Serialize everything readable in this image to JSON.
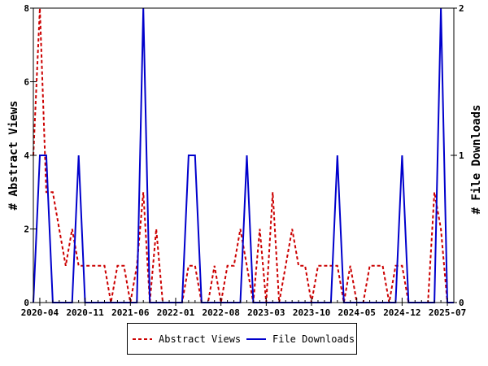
{
  "chart_data": {
    "type": "line",
    "x": [
      "2020-03",
      "2020-04",
      "2020-05",
      "2020-06",
      "2020-07",
      "2020-08",
      "2020-09",
      "2020-10",
      "2020-11",
      "2020-12",
      "2021-01",
      "2021-02",
      "2021-03",
      "2021-04",
      "2021-05",
      "2021-06",
      "2021-07",
      "2021-08",
      "2021-09",
      "2021-10",
      "2021-11",
      "2021-12",
      "2022-01",
      "2022-02",
      "2022-03",
      "2022-04",
      "2022-05",
      "2022-06",
      "2022-07",
      "2022-08",
      "2022-09",
      "2022-10",
      "2022-11",
      "2022-12",
      "2023-01",
      "2023-02",
      "2023-03",
      "2023-04",
      "2023-05",
      "2023-06",
      "2023-07",
      "2023-08",
      "2023-09",
      "2023-10",
      "2023-11",
      "2023-12",
      "2024-01",
      "2024-02",
      "2024-03",
      "2024-04",
      "2024-05",
      "2024-06",
      "2024-07",
      "2024-08",
      "2024-09",
      "2024-10",
      "2024-11",
      "2024-12",
      "2025-01",
      "2025-02",
      "2025-03",
      "2025-04",
      "2025-05",
      "2025-06",
      "2025-07",
      "2025-08"
    ],
    "x_tick_labels": [
      "2020-04",
      "2020-11",
      "2021-06",
      "2022-01",
      "2022-08",
      "2023-03",
      "2023-10",
      "2024-05",
      "2024-12",
      "2025-07"
    ],
    "series": [
      {
        "name": "Abstract Views",
        "axis": "left",
        "color": "#cc0000",
        "dash": true,
        "values": [
          4,
          8,
          3,
          3,
          2,
          1,
          2,
          1,
          1,
          1,
          1,
          1,
          0,
          1,
          1,
          0,
          1,
          3,
          0,
          2,
          0,
          0,
          0,
          0,
          1,
          1,
          0,
          0,
          1,
          0,
          1,
          1,
          2,
          1,
          0,
          2,
          0,
          3,
          0,
          1,
          2,
          1,
          1,
          0,
          1,
          1,
          1,
          1,
          0,
          1,
          0,
          0,
          1,
          1,
          1,
          0,
          1,
          1,
          0,
          0,
          0,
          0,
          3,
          2,
          0,
          0
        ]
      },
      {
        "name": "File Downloads",
        "axis": "right",
        "color": "#0000cc",
        "dash": false,
        "values": [
          0,
          1,
          1,
          0,
          0,
          0,
          0,
          1,
          0,
          0,
          0,
          0,
          0,
          0,
          0,
          0,
          0,
          2,
          0,
          0,
          0,
          0,
          0,
          0,
          1,
          1,
          0,
          0,
          0,
          0,
          0,
          0,
          0,
          1,
          0,
          0,
          0,
          0,
          0,
          0,
          0,
          0,
          0,
          0,
          0,
          0,
          0,
          1,
          0,
          0,
          0,
          0,
          0,
          0,
          0,
          0,
          0,
          1,
          0,
          0,
          0,
          0,
          0,
          2,
          0,
          0
        ]
      }
    ],
    "ylabel_left": "# Abstract Views",
    "ylabel_right": "# File Downloads",
    "ylim_left": [
      0,
      8
    ],
    "ylim_right": [
      0,
      2
    ],
    "yticks_left": [
      "0",
      "2",
      "4",
      "6",
      "8"
    ],
    "yticks_right": [
      "0",
      "1",
      "2"
    ],
    "grid": false,
    "legend_position": "bottom"
  }
}
